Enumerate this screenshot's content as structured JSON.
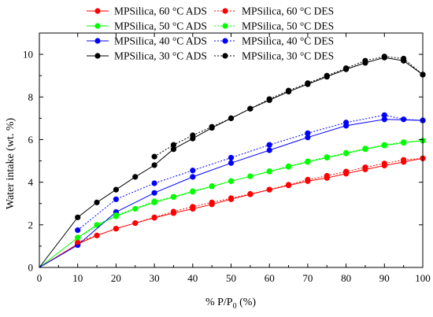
{
  "chart_data": {
    "type": "line",
    "xlabel": "% P/P",
    "xlabel_sub": "0",
    "xlabel_suffix": " (%)",
    "ylabel": "Water intake (wt. %)",
    "xlim": [
      0,
      100
    ],
    "ylim": [
      0,
      11
    ],
    "xticks": [
      0,
      10,
      20,
      30,
      40,
      50,
      60,
      70,
      80,
      90,
      100
    ],
    "yticks": [
      0,
      2,
      4,
      6,
      8,
      10
    ],
    "grid": false,
    "legend_position": "top-center",
    "series": [
      {
        "name": "MPSilica, 60 °C ADS",
        "color": "#ff0000",
        "dashed": false,
        "x": [
          0,
          10,
          15,
          20,
          25,
          30,
          35,
          40,
          45,
          50,
          55,
          60,
          65,
          70,
          75,
          80,
          85,
          90,
          95,
          100
        ],
        "y": [
          0,
          1.1,
          1.5,
          1.82,
          2.08,
          2.33,
          2.55,
          2.75,
          2.96,
          3.2,
          3.43,
          3.65,
          3.85,
          4.05,
          4.2,
          4.4,
          4.6,
          4.78,
          4.95,
          5.12
        ]
      },
      {
        "name": "MPSilica, 50 °C ADS",
        "color": "#00ff00",
        "dashed": false,
        "x": [
          0,
          10,
          15,
          20,
          25,
          30,
          35,
          40,
          45,
          50,
          55,
          60,
          65,
          70,
          75,
          80,
          85,
          90,
          95,
          100
        ],
        "y": [
          0,
          1.4,
          2.0,
          2.4,
          2.75,
          3.05,
          3.3,
          3.55,
          3.8,
          4.05,
          4.28,
          4.5,
          4.72,
          4.95,
          5.15,
          5.35,
          5.55,
          5.72,
          5.85,
          5.95
        ]
      },
      {
        "name": "MPSilica, 40 °C ADS",
        "color": "#0000ff",
        "dashed": false,
        "x": [
          0,
          10,
          20,
          30,
          40,
          50,
          60,
          70,
          80,
          90,
          100
        ],
        "y": [
          0,
          1.05,
          2.6,
          3.5,
          4.25,
          4.9,
          5.5,
          6.1,
          6.65,
          6.95,
          6.9
        ]
      },
      {
        "name": "MPSilica, 30 °C ADS",
        "color": "#000000",
        "dashed": false,
        "x": [
          0,
          10,
          15,
          20,
          25,
          30,
          35,
          40,
          45,
          50,
          55,
          60,
          65,
          70,
          75,
          80,
          85,
          90,
          95,
          100
        ],
        "y": [
          0,
          2.35,
          3.05,
          3.65,
          4.25,
          4.8,
          5.55,
          6.05,
          6.55,
          7.0,
          7.45,
          7.85,
          8.25,
          8.6,
          8.95,
          9.3,
          9.6,
          9.85,
          9.7,
          9.05
        ]
      },
      {
        "name": "MPSilica, 60 °C DES",
        "color": "#ff0000",
        "dashed": true,
        "x": [
          10,
          20,
          30,
          35,
          40,
          45,
          50,
          55,
          60,
          65,
          70,
          75,
          80,
          85,
          90,
          95,
          100
        ],
        "y": [
          1.18,
          1.82,
          2.35,
          2.62,
          2.85,
          3.05,
          3.25,
          3.45,
          3.65,
          3.88,
          4.12,
          4.3,
          4.5,
          4.7,
          4.88,
          5.05,
          5.12
        ]
      },
      {
        "name": "MPSilica, 50 °C DES",
        "color": "#00ff00",
        "dashed": true,
        "x": [
          10,
          20,
          30,
          35,
          40,
          45,
          50,
          55,
          60,
          65,
          70,
          75,
          80,
          85,
          90,
          95,
          100
        ],
        "y": [
          1.4,
          2.45,
          3.1,
          3.32,
          3.58,
          3.82,
          4.05,
          4.28,
          4.52,
          4.75,
          4.98,
          5.18,
          5.38,
          5.58,
          5.75,
          5.88,
          5.95
        ]
      },
      {
        "name": "MPSilica, 40 °C DES",
        "color": "#0000ff",
        "dashed": true,
        "x": [
          10,
          20,
          30,
          40,
          50,
          60,
          70,
          80,
          90,
          95,
          100
        ],
        "y": [
          1.75,
          3.2,
          3.95,
          4.55,
          5.15,
          5.75,
          6.3,
          6.8,
          7.15,
          6.95,
          6.9
        ]
      },
      {
        "name": "MPSilica, 30 °C DES",
        "color": "#000000",
        "dashed": true,
        "x": [
          30,
          35,
          40,
          45,
          50,
          55,
          60,
          65,
          70,
          75,
          80,
          85,
          90,
          95,
          100
        ],
        "y": [
          5.2,
          5.75,
          6.2,
          6.6,
          7.0,
          7.45,
          7.9,
          8.3,
          8.65,
          9.0,
          9.35,
          9.7,
          9.9,
          9.8,
          9.05
        ]
      }
    ]
  }
}
